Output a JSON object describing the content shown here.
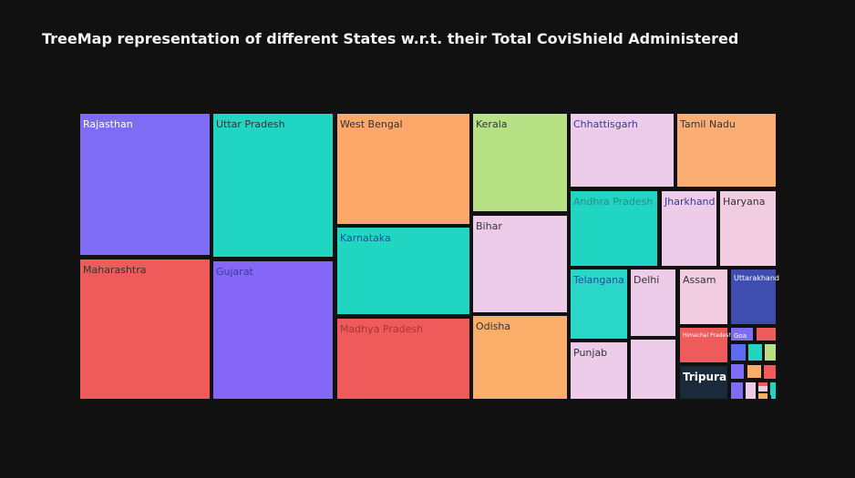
{
  "chart_data": {
    "type": "treemap",
    "title": "TreeMap representation of different States w.r.t. their Total CoviShield Administered",
    "labeled_tiles": [
      {
        "label": "Rajasthan",
        "color": "#7f6cf5"
      },
      {
        "label": "Maharashtra",
        "color": "#ef5a5a"
      },
      {
        "label": "Uttar Pradesh",
        "color": "#20d6c2"
      },
      {
        "label": "Gujarat",
        "color": "#8467f6"
      },
      {
        "label": "West Bengal",
        "color": "#fba86a"
      },
      {
        "label": "Karnataka",
        "color": "#20d6c2"
      },
      {
        "label": "Madhya Pradesh",
        "color": "#ef5a5a"
      },
      {
        "label": "Kerala",
        "color": "#b6e285"
      },
      {
        "label": "Bihar",
        "color": "#edccea"
      },
      {
        "label": "Odisha",
        "color": "#fbae6a"
      },
      {
        "label": "Chhattisgarh",
        "color": "#edccea"
      },
      {
        "label": "Tamil Nadu",
        "color": "#fbae73"
      },
      {
        "label": "Andhra Pradesh",
        "color": "#20d6c2"
      },
      {
        "label": "Jharkhand",
        "color": "#edccea"
      },
      {
        "label": "Haryana",
        "color": "#f2cce0"
      },
      {
        "label": "Telangana",
        "color": "#2ad6c8"
      },
      {
        "label": "Delhi",
        "color": "#edccea"
      },
      {
        "label": "Assam",
        "color": "#f2cce0"
      },
      {
        "label": "Uttarakhand",
        "color": "#3f4cb0"
      },
      {
        "label": "Punjab",
        "color": "#edccea"
      },
      {
        "label": "Himachal Pradesh",
        "color": "#ef5a5a"
      },
      {
        "label": "Goa",
        "color": "#7f6cf5"
      },
      {
        "label": "Tripura",
        "color": "#1a2a3a"
      }
    ],
    "unlabeled_tiles": [
      {
        "color": "#edccea"
      },
      {
        "color": "#ef5a5a"
      },
      {
        "color": "#5a6cf0"
      },
      {
        "color": "#20d6c2"
      },
      {
        "color": "#b6e285"
      },
      {
        "color": "#7f6cf5"
      },
      {
        "color": "#fbae6a"
      },
      {
        "color": "#ef5a5a"
      },
      {
        "color": "#7f6cf5"
      },
      {
        "color": "#edccea"
      },
      {
        "color": "#ef5a5a"
      },
      {
        "color": "#fbae6a"
      },
      {
        "color": "#20d6c2"
      },
      {
        "color": "#edccea"
      },
      {
        "color": "#20d6c2"
      }
    ]
  }
}
